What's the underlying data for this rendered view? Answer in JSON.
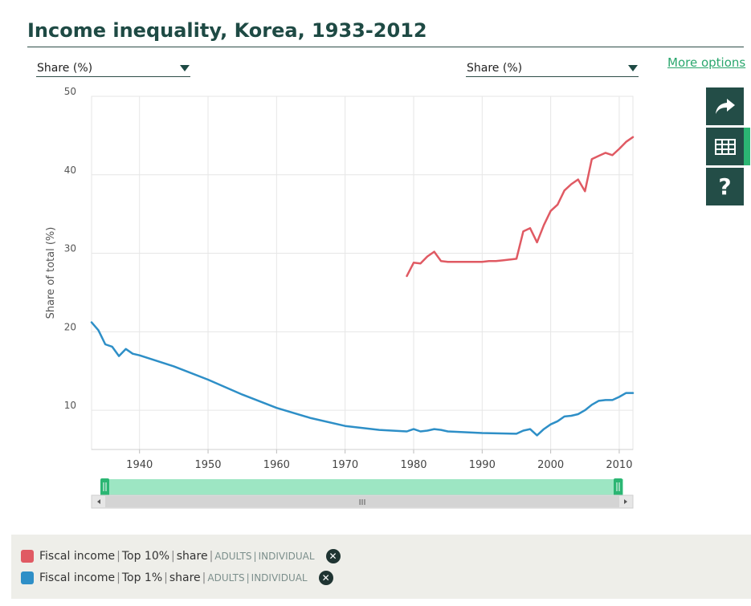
{
  "title": "Income inequality, Korea, 1933-2012",
  "selectors": {
    "left": "Share (%)",
    "right": "Share (%)"
  },
  "more_options": "More options",
  "side_buttons": [
    {
      "name": "share-icon"
    },
    {
      "name": "table-icon"
    },
    {
      "name": "help-icon",
      "glyph": "?"
    }
  ],
  "scrollbar": {
    "grip": "III"
  },
  "colors": {
    "accent": "#2bb673",
    "dark": "#234d47",
    "top10": "#e05a63",
    "top1": "#2e8fc7"
  },
  "chart_data": {
    "type": "line",
    "title": "Income inequality, Korea, 1933-2012",
    "xlabel": "",
    "ylabel": "Share of total (%)",
    "xlim": [
      1933,
      2012
    ],
    "ylim": [
      5,
      50
    ],
    "x_ticks": [
      1940,
      1950,
      1960,
      1970,
      1980,
      1990,
      2000,
      2010
    ],
    "y_ticks": [
      10,
      20,
      30,
      40,
      50
    ],
    "grid": true,
    "series": [
      {
        "name": "Fiscal income | Top 10% | share",
        "color": "#e05a63",
        "points": [
          [
            1979,
            27.1
          ],
          [
            1980,
            28.8
          ],
          [
            1981,
            28.7
          ],
          [
            1982,
            29.6
          ],
          [
            1983,
            30.2
          ],
          [
            1984,
            29.0
          ],
          [
            1985,
            28.9
          ],
          [
            1986,
            28.9
          ],
          [
            1987,
            28.9
          ],
          [
            1988,
            28.9
          ],
          [
            1989,
            28.9
          ],
          [
            1990,
            28.9
          ],
          [
            1991,
            29.0
          ],
          [
            1992,
            29.0
          ],
          [
            1993,
            29.1
          ],
          [
            1994,
            29.2
          ],
          [
            1995,
            29.3
          ],
          [
            1996,
            32.8
          ],
          [
            1997,
            33.2
          ],
          [
            1998,
            31.4
          ],
          [
            1999,
            33.6
          ],
          [
            2000,
            35.4
          ],
          [
            2001,
            36.2
          ],
          [
            2002,
            38.0
          ],
          [
            2003,
            38.8
          ],
          [
            2004,
            39.4
          ],
          [
            2005,
            37.9
          ],
          [
            2006,
            42.0
          ],
          [
            2007,
            42.4
          ],
          [
            2008,
            42.8
          ],
          [
            2009,
            42.5
          ],
          [
            2010,
            43.3
          ],
          [
            2011,
            44.2
          ],
          [
            2012,
            44.8
          ]
        ]
      },
      {
        "name": "Fiscal income | Top 1% | share",
        "color": "#2e8fc7",
        "points": [
          [
            1933,
            21.2
          ],
          [
            1934,
            20.2
          ],
          [
            1935,
            18.4
          ],
          [
            1936,
            18.1
          ],
          [
            1937,
            16.9
          ],
          [
            1938,
            17.8
          ],
          [
            1939,
            17.2
          ],
          [
            1940,
            17.0
          ],
          [
            1945,
            15.6
          ],
          [
            1950,
            13.9
          ],
          [
            1955,
            12.0
          ],
          [
            1960,
            10.3
          ],
          [
            1965,
            9.0
          ],
          [
            1970,
            8.0
          ],
          [
            1975,
            7.5
          ],
          [
            1979,
            7.3
          ],
          [
            1980,
            7.6
          ],
          [
            1981,
            7.3
          ],
          [
            1982,
            7.4
          ],
          [
            1983,
            7.6
          ],
          [
            1984,
            7.5
          ],
          [
            1985,
            7.3
          ],
          [
            1990,
            7.1
          ],
          [
            1995,
            7.0
          ],
          [
            1996,
            7.4
          ],
          [
            1997,
            7.6
          ],
          [
            1998,
            6.8
          ],
          [
            1999,
            7.6
          ],
          [
            2000,
            8.2
          ],
          [
            2001,
            8.6
          ],
          [
            2002,
            9.2
          ],
          [
            2003,
            9.3
          ],
          [
            2004,
            9.5
          ],
          [
            2005,
            10.0
          ],
          [
            2006,
            10.7
          ],
          [
            2007,
            11.2
          ],
          [
            2008,
            11.3
          ],
          [
            2009,
            11.3
          ],
          [
            2010,
            11.7
          ],
          [
            2011,
            12.2
          ],
          [
            2012,
            12.2
          ]
        ]
      }
    ]
  },
  "legend": [
    {
      "color": "#e05a63",
      "a": "Fiscal income",
      "b": "Top 10%",
      "c": "share",
      "d": "ADULTS",
      "e": "INDIVIDUAL",
      "close": "✕"
    },
    {
      "color": "#2e8fc7",
      "a": "Fiscal income",
      "b": "Top 1%",
      "c": "share",
      "d": "ADULTS",
      "e": "INDIVIDUAL",
      "close": "✕"
    }
  ]
}
